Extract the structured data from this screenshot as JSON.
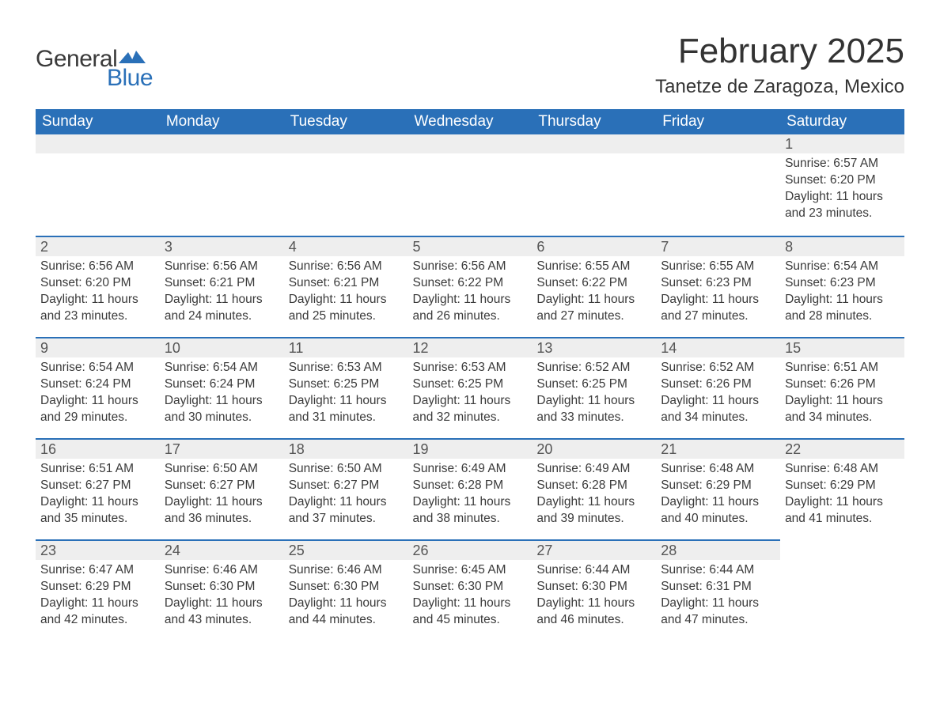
{
  "brand": {
    "word1": "General",
    "word2": "Blue",
    "logo_color": "#2a70b8"
  },
  "title": "February 2025",
  "location": "Tanetze de Zaragoza, Mexico",
  "colors": {
    "header_bg": "#2a70b8",
    "header_text": "#ffffff",
    "daynum_bg": "#eeeeee",
    "row_border": "#2a70b8",
    "text": "#3a3a3a"
  },
  "weekdays": [
    "Sunday",
    "Monday",
    "Tuesday",
    "Wednesday",
    "Thursday",
    "Friday",
    "Saturday"
  ],
  "weeks": [
    [
      null,
      null,
      null,
      null,
      null,
      null,
      {
        "n": "1",
        "sr": "6:57 AM",
        "ss": "6:20 PM",
        "dl": "11 hours and 23 minutes."
      }
    ],
    [
      {
        "n": "2",
        "sr": "6:56 AM",
        "ss": "6:20 PM",
        "dl": "11 hours and 23 minutes."
      },
      {
        "n": "3",
        "sr": "6:56 AM",
        "ss": "6:21 PM",
        "dl": "11 hours and 24 minutes."
      },
      {
        "n": "4",
        "sr": "6:56 AM",
        "ss": "6:21 PM",
        "dl": "11 hours and 25 minutes."
      },
      {
        "n": "5",
        "sr": "6:56 AM",
        "ss": "6:22 PM",
        "dl": "11 hours and 26 minutes."
      },
      {
        "n": "6",
        "sr": "6:55 AM",
        "ss": "6:22 PM",
        "dl": "11 hours and 27 minutes."
      },
      {
        "n": "7",
        "sr": "6:55 AM",
        "ss": "6:23 PM",
        "dl": "11 hours and 27 minutes."
      },
      {
        "n": "8",
        "sr": "6:54 AM",
        "ss": "6:23 PM",
        "dl": "11 hours and 28 minutes."
      }
    ],
    [
      {
        "n": "9",
        "sr": "6:54 AM",
        "ss": "6:24 PM",
        "dl": "11 hours and 29 minutes."
      },
      {
        "n": "10",
        "sr": "6:54 AM",
        "ss": "6:24 PM",
        "dl": "11 hours and 30 minutes."
      },
      {
        "n": "11",
        "sr": "6:53 AM",
        "ss": "6:25 PM",
        "dl": "11 hours and 31 minutes."
      },
      {
        "n": "12",
        "sr": "6:53 AM",
        "ss": "6:25 PM",
        "dl": "11 hours and 32 minutes."
      },
      {
        "n": "13",
        "sr": "6:52 AM",
        "ss": "6:25 PM",
        "dl": "11 hours and 33 minutes."
      },
      {
        "n": "14",
        "sr": "6:52 AM",
        "ss": "6:26 PM",
        "dl": "11 hours and 34 minutes."
      },
      {
        "n": "15",
        "sr": "6:51 AM",
        "ss": "6:26 PM",
        "dl": "11 hours and 34 minutes."
      }
    ],
    [
      {
        "n": "16",
        "sr": "6:51 AM",
        "ss": "6:27 PM",
        "dl": "11 hours and 35 minutes."
      },
      {
        "n": "17",
        "sr": "6:50 AM",
        "ss": "6:27 PM",
        "dl": "11 hours and 36 minutes."
      },
      {
        "n": "18",
        "sr": "6:50 AM",
        "ss": "6:27 PM",
        "dl": "11 hours and 37 minutes."
      },
      {
        "n": "19",
        "sr": "6:49 AM",
        "ss": "6:28 PM",
        "dl": "11 hours and 38 minutes."
      },
      {
        "n": "20",
        "sr": "6:49 AM",
        "ss": "6:28 PM",
        "dl": "11 hours and 39 minutes."
      },
      {
        "n": "21",
        "sr": "6:48 AM",
        "ss": "6:29 PM",
        "dl": "11 hours and 40 minutes."
      },
      {
        "n": "22",
        "sr": "6:48 AM",
        "ss": "6:29 PM",
        "dl": "11 hours and 41 minutes."
      }
    ],
    [
      {
        "n": "23",
        "sr": "6:47 AM",
        "ss": "6:29 PM",
        "dl": "11 hours and 42 minutes."
      },
      {
        "n": "24",
        "sr": "6:46 AM",
        "ss": "6:30 PM",
        "dl": "11 hours and 43 minutes."
      },
      {
        "n": "25",
        "sr": "6:46 AM",
        "ss": "6:30 PM",
        "dl": "11 hours and 44 minutes."
      },
      {
        "n": "26",
        "sr": "6:45 AM",
        "ss": "6:30 PM",
        "dl": "11 hours and 45 minutes."
      },
      {
        "n": "27",
        "sr": "6:44 AM",
        "ss": "6:30 PM",
        "dl": "11 hours and 46 minutes."
      },
      {
        "n": "28",
        "sr": "6:44 AM",
        "ss": "6:31 PM",
        "dl": "11 hours and 47 minutes."
      },
      null
    ]
  ],
  "labels": {
    "sunrise": "Sunrise:",
    "sunset": "Sunset:",
    "daylight": "Daylight:"
  }
}
